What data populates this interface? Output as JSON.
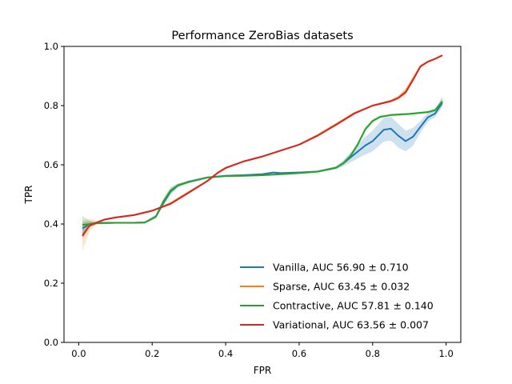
{
  "chart_data": {
    "type": "line",
    "title": "Performance ZeroBias datasets",
    "xlabel": "FPR",
    "ylabel": "TPR",
    "xlim": [
      -0.04,
      1.04
    ],
    "ylim": [
      0.0,
      1.0
    ],
    "x_ticks": [
      0.0,
      0.2,
      0.4,
      0.6,
      0.8,
      1.0
    ],
    "y_ticks": [
      0.0,
      0.2,
      0.4,
      0.6,
      0.8,
      1.0
    ],
    "x_tick_labels": [
      "0.0",
      "0.2",
      "0.4",
      "0.6",
      "0.8",
      "1.0"
    ],
    "y_tick_labels": [
      "0.0",
      "0.2",
      "0.4",
      "0.6",
      "0.8",
      "1.0"
    ],
    "grid": false,
    "legend_position": "lower-right",
    "series": [
      {
        "name": "Vanilla, AUC 56.90 ± 0.710",
        "color": "#1f77b4",
        "band_color": "#1f77b4",
        "x": [
          0.01,
          0.03,
          0.05,
          0.1,
          0.15,
          0.18,
          0.21,
          0.23,
          0.25,
          0.27,
          0.3,
          0.35,
          0.4,
          0.45,
          0.5,
          0.53,
          0.55,
          0.6,
          0.65,
          0.7,
          0.72,
          0.75,
          0.78,
          0.8,
          0.83,
          0.85,
          0.87,
          0.89,
          0.91,
          0.93,
          0.95,
          0.97,
          0.99
        ],
        "y": [
          0.385,
          0.4,
          0.403,
          0.404,
          0.404,
          0.405,
          0.425,
          0.47,
          0.51,
          0.53,
          0.543,
          0.557,
          0.563,
          0.565,
          0.568,
          0.574,
          0.572,
          0.574,
          0.577,
          0.59,
          0.605,
          0.635,
          0.665,
          0.68,
          0.718,
          0.722,
          0.698,
          0.68,
          0.695,
          0.728,
          0.76,
          0.773,
          0.81
        ],
        "band": [
          0.02,
          0.01,
          0.004,
          0.003,
          0.003,
          0.003,
          0.006,
          0.01,
          0.01,
          0.006,
          0.004,
          0.003,
          0.003,
          0.003,
          0.003,
          0.003,
          0.003,
          0.003,
          0.003,
          0.005,
          0.01,
          0.02,
          0.03,
          0.035,
          0.04,
          0.04,
          0.04,
          0.035,
          0.03,
          0.02,
          0.015,
          0.012,
          0.015
        ]
      },
      {
        "name": "Sparse, AUC 63.45 ± 0.032",
        "color": "#ff7f0e",
        "band_color": "#ff7f0e",
        "x": [
          0.01,
          0.03,
          0.05,
          0.07,
          0.1,
          0.15,
          0.2,
          0.25,
          0.3,
          0.35,
          0.38,
          0.4,
          0.45,
          0.5,
          0.55,
          0.6,
          0.65,
          0.7,
          0.75,
          0.8,
          0.85,
          0.87,
          0.89,
          0.91,
          0.93,
          0.95,
          0.97,
          0.99
        ],
        "y": [
          0.36,
          0.398,
          0.405,
          0.415,
          0.422,
          0.43,
          0.445,
          0.47,
          0.508,
          0.545,
          0.575,
          0.59,
          0.612,
          0.628,
          0.648,
          0.668,
          0.7,
          0.737,
          0.775,
          0.8,
          0.816,
          0.827,
          0.848,
          0.89,
          0.933,
          0.948,
          0.958,
          0.97
        ],
        "band": [
          0.05,
          0.02,
          0.005,
          0.003,
          0.003,
          0.003,
          0.003,
          0.003,
          0.003,
          0.003,
          0.003,
          0.003,
          0.003,
          0.003,
          0.003,
          0.003,
          0.003,
          0.003,
          0.003,
          0.003,
          0.005,
          0.008,
          0.012,
          0.01,
          0.006,
          0.004,
          0.003,
          0.003
        ]
      },
      {
        "name": "Contractive, AUC 57.81 ± 0.140",
        "color": "#2ca02c",
        "band_color": "#2ca02c",
        "x": [
          0.01,
          0.03,
          0.05,
          0.1,
          0.15,
          0.18,
          0.21,
          0.23,
          0.25,
          0.27,
          0.3,
          0.35,
          0.4,
          0.45,
          0.5,
          0.55,
          0.6,
          0.65,
          0.7,
          0.72,
          0.74,
          0.76,
          0.78,
          0.8,
          0.82,
          0.85,
          0.9,
          0.95,
          0.97,
          0.99
        ],
        "y": [
          0.397,
          0.4,
          0.403,
          0.404,
          0.404,
          0.405,
          0.425,
          0.475,
          0.513,
          0.531,
          0.542,
          0.557,
          0.562,
          0.563,
          0.565,
          0.568,
          0.572,
          0.577,
          0.59,
          0.605,
          0.63,
          0.67,
          0.72,
          0.748,
          0.762,
          0.768,
          0.772,
          0.778,
          0.785,
          0.815
        ],
        "band": [
          0.03,
          0.01,
          0.004,
          0.003,
          0.003,
          0.003,
          0.006,
          0.012,
          0.012,
          0.006,
          0.004,
          0.003,
          0.003,
          0.003,
          0.003,
          0.003,
          0.003,
          0.003,
          0.004,
          0.006,
          0.008,
          0.008,
          0.008,
          0.006,
          0.005,
          0.004,
          0.004,
          0.004,
          0.006,
          0.015
        ]
      },
      {
        "name": "Variational, AUC 63.56 ± 0.007",
        "color": "#d62728",
        "band_color": "#d62728",
        "x": [
          0.01,
          0.03,
          0.05,
          0.07,
          0.1,
          0.15,
          0.2,
          0.25,
          0.3,
          0.35,
          0.38,
          0.4,
          0.45,
          0.5,
          0.55,
          0.6,
          0.65,
          0.7,
          0.75,
          0.8,
          0.85,
          0.87,
          0.89,
          0.91,
          0.93,
          0.95,
          0.97,
          0.99
        ],
        "y": [
          0.36,
          0.395,
          0.405,
          0.415,
          0.422,
          0.43,
          0.445,
          0.468,
          0.506,
          0.545,
          0.574,
          0.589,
          0.612,
          0.628,
          0.648,
          0.668,
          0.698,
          0.735,
          0.773,
          0.8,
          0.815,
          0.826,
          0.845,
          0.887,
          0.932,
          0.948,
          0.958,
          0.97
        ],
        "band": [
          0.01,
          0.004,
          0.002,
          0.002,
          0.002,
          0.002,
          0.002,
          0.002,
          0.002,
          0.002,
          0.002,
          0.002,
          0.002,
          0.002,
          0.002,
          0.002,
          0.002,
          0.002,
          0.002,
          0.002,
          0.002,
          0.002,
          0.003,
          0.003,
          0.002,
          0.002,
          0.002,
          0.002
        ]
      }
    ]
  }
}
